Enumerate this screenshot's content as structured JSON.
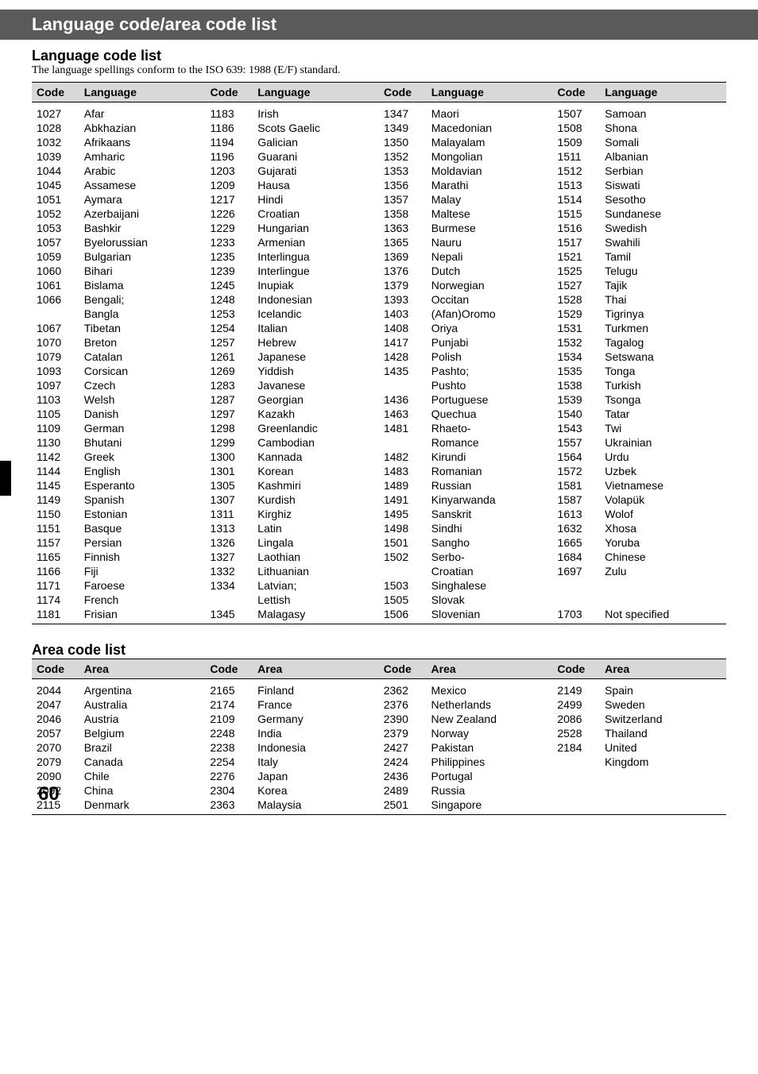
{
  "banner": "Language code/area code list",
  "lang_section": {
    "title": "Language code list",
    "subtitle": "The language spellings conform to the ISO 639: 1988 (E/F) standard.",
    "headers": [
      "Code",
      "Language",
      "Code",
      "Language",
      "Code",
      "Language",
      "Code",
      "Language"
    ],
    "rows": [
      [
        "1027",
        "Afar",
        "1183",
        "Irish",
        "1347",
        "Maori",
        "1507",
        "Samoan"
      ],
      [
        "1028",
        "Abkhazian",
        "1186",
        "Scots Gaelic",
        "1349",
        "Macedonian",
        "1508",
        "Shona"
      ],
      [
        "1032",
        "Afrikaans",
        "1194",
        "Galician",
        "1350",
        "Malayalam",
        "1509",
        "Somali"
      ],
      [
        "1039",
        "Amharic",
        "1196",
        "Guarani",
        "1352",
        "Mongolian",
        "1511",
        "Albanian"
      ],
      [
        "1044",
        "Arabic",
        "1203",
        "Gujarati",
        "1353",
        "Moldavian",
        "1512",
        "Serbian"
      ],
      [
        "1045",
        "Assamese",
        "1209",
        "Hausa",
        "1356",
        "Marathi",
        "1513",
        "Siswati"
      ],
      [
        "1051",
        "Aymara",
        "1217",
        "Hindi",
        "1357",
        "Malay",
        "1514",
        "Sesotho"
      ],
      [
        "1052",
        "Azerbaijani",
        "1226",
        "Croatian",
        "1358",
        "Maltese",
        "1515",
        "Sundanese"
      ],
      [
        "1053",
        "Bashkir",
        "1229",
        "Hungarian",
        "1363",
        "Burmese",
        "1516",
        "Swedish"
      ],
      [
        "1057",
        "Byelorussian",
        "1233",
        "Armenian",
        "1365",
        "Nauru",
        "1517",
        "Swahili"
      ],
      [
        "1059",
        "Bulgarian",
        "1235",
        "Interlingua",
        "1369",
        "Nepali",
        "1521",
        "Tamil"
      ],
      [
        "1060",
        "Bihari",
        "1239",
        "Interlingue",
        "1376",
        "Dutch",
        "1525",
        "Telugu"
      ],
      [
        "1061",
        "Bislama",
        "1245",
        "Inupiak",
        "1379",
        "Norwegian",
        "1527",
        "Tajik"
      ],
      [
        "1066",
        "Bengali;",
        "1248",
        "Indonesian",
        "1393",
        "Occitan",
        "1528",
        "Thai"
      ],
      [
        "",
        "Bangla",
        "1253",
        "Icelandic",
        "1403",
        "(Afan)Oromo",
        "1529",
        "Tigrinya"
      ],
      [
        "1067",
        "Tibetan",
        "1254",
        "Italian",
        "1408",
        "Oriya",
        "1531",
        "Turkmen"
      ],
      [
        "1070",
        "Breton",
        "1257",
        "Hebrew",
        "1417",
        "Punjabi",
        "1532",
        "Tagalog"
      ],
      [
        "1079",
        "Catalan",
        "1261",
        "Japanese",
        "1428",
        "Polish",
        "1534",
        "Setswana"
      ],
      [
        "1093",
        "Corsican",
        "1269",
        "Yiddish",
        "1435",
        "Pashto;",
        "1535",
        "Tonga"
      ],
      [
        "1097",
        "Czech",
        "1283",
        "Javanese",
        "",
        "Pushto",
        "1538",
        "Turkish"
      ],
      [
        "1103",
        "Welsh",
        "1287",
        "Georgian",
        "1436",
        "Portuguese",
        "1539",
        "Tsonga"
      ],
      [
        "1105",
        "Danish",
        "1297",
        "Kazakh",
        "1463",
        "Quechua",
        "1540",
        "Tatar"
      ],
      [
        "1109",
        "German",
        "1298",
        "Greenlandic",
        "1481",
        "Rhaeto-",
        "1543",
        "Twi"
      ],
      [
        "1130",
        "Bhutani",
        "1299",
        "Cambodian",
        "",
        "Romance",
        "1557",
        "Ukrainian"
      ],
      [
        "1142",
        "Greek",
        "1300",
        "Kannada",
        "1482",
        "Kirundi",
        "1564",
        "Urdu"
      ],
      [
        "1144",
        "English",
        "1301",
        "Korean",
        "1483",
        "Romanian",
        "1572",
        "Uzbek"
      ],
      [
        "1145",
        "Esperanto",
        "1305",
        "Kashmiri",
        "1489",
        "Russian",
        "1581",
        "Vietnamese"
      ],
      [
        "1149",
        "Spanish",
        "1307",
        "Kurdish",
        "1491",
        "Kinyarwanda",
        "1587",
        "Volapük"
      ],
      [
        "1150",
        "Estonian",
        "1311",
        "Kirghiz",
        "1495",
        "Sanskrit",
        "1613",
        "Wolof"
      ],
      [
        "1151",
        "Basque",
        "1313",
        "Latin",
        "1498",
        "Sindhi",
        "1632",
        "Xhosa"
      ],
      [
        "1157",
        "Persian",
        "1326",
        "Lingala",
        "1501",
        "Sangho",
        "1665",
        "Yoruba"
      ],
      [
        "1165",
        "Finnish",
        "1327",
        "Laothian",
        "1502",
        "Serbo-",
        "1684",
        "Chinese"
      ],
      [
        "1166",
        "Fiji",
        "1332",
        "Lithuanian",
        "",
        "Croatian",
        "1697",
        "Zulu"
      ],
      [
        "1171",
        "Faroese",
        "1334",
        "Latvian;",
        "1503",
        "Singhalese",
        "",
        ""
      ],
      [
        "1174",
        "French",
        "",
        "Lettish",
        "1505",
        "Slovak",
        "",
        ""
      ],
      [
        "1181",
        "Frisian",
        "1345",
        "Malagasy",
        "1506",
        "Slovenian",
        "1703",
        "Not specified"
      ]
    ],
    "col_widths": [
      "60px",
      "160px",
      "60px",
      "160px",
      "60px",
      "160px",
      "60px",
      "160px"
    ]
  },
  "area_section": {
    "title": "Area code list",
    "headers": [
      "Code",
      "Area",
      "Code",
      "Area",
      "Code",
      "Area",
      "Code",
      "Area"
    ],
    "rows": [
      [
        "2044",
        "Argentina",
        "2165",
        "Finland",
        "2362",
        "Mexico",
        "2149",
        "Spain"
      ],
      [
        "2047",
        "Australia",
        "2174",
        "France",
        "2376",
        "Netherlands",
        "2499",
        "Sweden"
      ],
      [
        "2046",
        "Austria",
        "2109",
        "Germany",
        "2390",
        "New Zealand",
        "2086",
        "Switzerland"
      ],
      [
        "2057",
        "Belgium",
        "2248",
        "India",
        "2379",
        "Norway",
        "2528",
        "Thailand"
      ],
      [
        "2070",
        "Brazil",
        "2238",
        "Indonesia",
        "2427",
        "Pakistan",
        "2184",
        "United"
      ],
      [
        "2079",
        "Canada",
        "2254",
        "Italy",
        "2424",
        "Philippines",
        "",
        "Kingdom"
      ],
      [
        "2090",
        "Chile",
        "2276",
        "Japan",
        "2436",
        "Portugal",
        "",
        ""
      ],
      [
        "2092",
        "China",
        "2304",
        "Korea",
        "2489",
        "Russia",
        "",
        ""
      ],
      [
        "2115",
        "Denmark",
        "2363",
        "Malaysia",
        "2501",
        "Singapore",
        "",
        ""
      ]
    ],
    "col_widths": [
      "60px",
      "160px",
      "60px",
      "160px",
      "60px",
      "160px",
      "60px",
      "160px"
    ]
  },
  "page_number": "60"
}
